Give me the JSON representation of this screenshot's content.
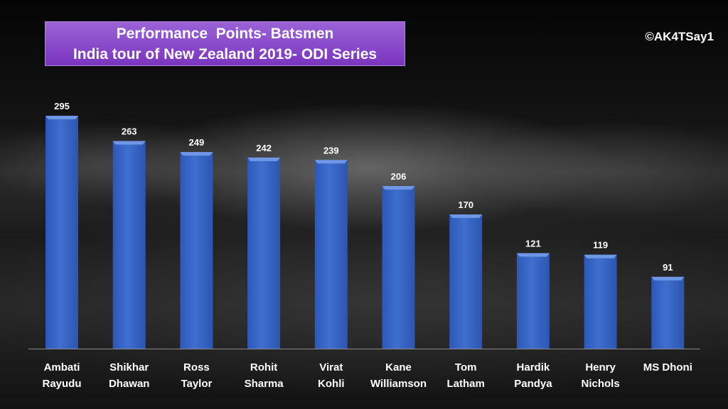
{
  "header": {
    "title_line1": "Performance  Points- Batsmen",
    "title_line2": "India tour of New Zealand 2019- ODI Series",
    "credit": "©AK4TSay1"
  },
  "colors": {
    "bar": "#3f6fd0",
    "bar_top": "#6f97e6",
    "title_bg": "#8a47cc",
    "text": "#ffffff"
  },
  "chart_data": {
    "type": "bar",
    "title": "Performance  Points- Batsmen / India tour of New Zealand 2019- ODI Series",
    "categories": [
      [
        "Ambati",
        "Rayudu"
      ],
      [
        "Shikhar",
        "Dhawan"
      ],
      [
        "Ross",
        "Taylor"
      ],
      [
        "Rohit",
        "Sharma"
      ],
      [
        "Virat",
        "Kohli"
      ],
      [
        "Kane",
        "Williamson"
      ],
      [
        "Tom",
        "Latham"
      ],
      [
        "Hardik",
        "Pandya"
      ],
      [
        "Henry",
        "Nichols"
      ],
      [
        "MS Dhoni"
      ]
    ],
    "values": [
      295,
      263,
      249,
      242,
      239,
      206,
      170,
      121,
      119,
      91
    ],
    "xlabel": "",
    "ylabel": "",
    "ylim": [
      0,
      295
    ],
    "grid": false,
    "data_labels": true
  }
}
